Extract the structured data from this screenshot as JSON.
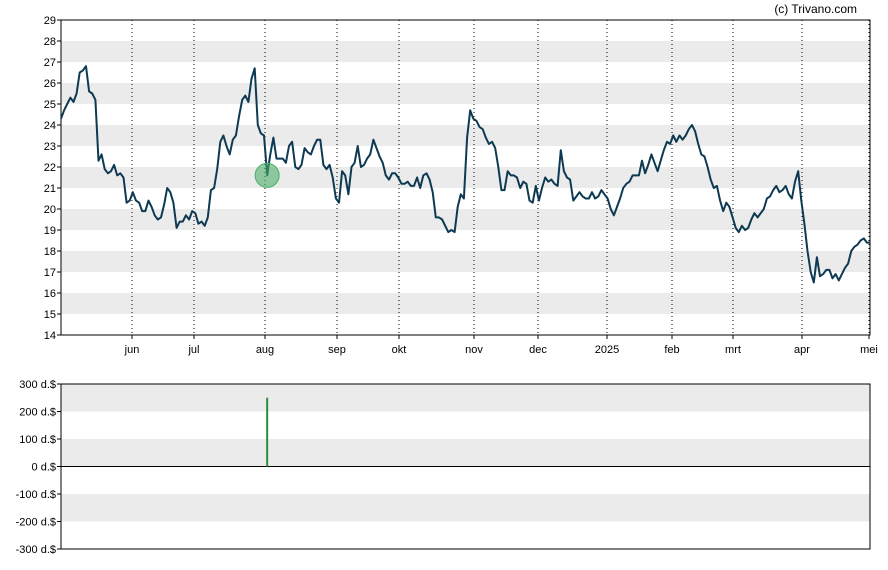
{
  "copyright": "(c) Trivano.com",
  "colors": {
    "price_line": "#0d3a52",
    "band": "#ebebeb",
    "grid": "#000000",
    "marker_fill": "#4caf6b",
    "volume_bar": "#2e8b3e"
  },
  "chart_data": [
    {
      "type": "line",
      "x_tick_labels": [
        "jun",
        "jul",
        "aug",
        "sep",
        "okt",
        "nov",
        "dec",
        "2025",
        "feb",
        "mrt",
        "apr",
        "mei"
      ],
      "y_tick_labels": [
        "29",
        "28",
        "27",
        "26",
        "25",
        "24",
        "23",
        "22",
        "21",
        "20",
        "19",
        "18",
        "17",
        "16",
        "15",
        "14"
      ],
      "ylim": [
        14,
        29
      ],
      "grid": "dotted vertical at month starts, alternating horizontal bands",
      "series": [
        {
          "values": [
            24.3,
            24.7,
            25.0,
            25.3,
            25.1,
            25.5,
            26.5,
            26.6,
            26.8,
            25.6,
            25.5,
            25.2,
            22.3,
            22.6,
            21.9,
            21.7,
            21.8,
            22.1,
            21.6,
            21.7,
            21.5,
            20.3,
            20.4,
            20.8,
            20.4,
            20.3,
            19.9,
            19.9,
            20.4,
            20.1,
            19.7,
            19.5,
            19.6,
            20.2,
            21.0,
            20.8,
            20.3,
            19.1,
            19.4,
            19.4,
            19.7,
            19.5,
            19.9,
            19.8,
            19.3,
            19.4,
            19.2,
            19.6,
            20.9,
            21.0,
            21.9,
            23.2,
            23.5,
            23.0,
            22.6,
            23.3,
            23.5,
            24.4,
            25.2,
            25.4,
            25.1,
            26.2,
            26.7,
            24.0,
            23.6,
            23.5,
            21.6,
            22.6,
            23.4,
            22.4,
            22.4,
            22.4,
            22.2,
            23.0,
            23.2,
            22.0,
            21.9,
            22.1,
            22.9,
            22.7,
            22.6,
            23.0,
            23.3,
            23.3,
            22.1,
            21.9,
            22.1,
            21.5,
            20.5,
            20.3,
            21.8,
            21.6,
            20.7,
            22.0,
            22.2,
            23.0,
            22.0,
            22.1,
            22.4,
            22.6,
            23.3,
            22.9,
            22.5,
            22.2,
            21.6,
            21.4,
            21.7,
            21.7,
            21.5,
            21.2,
            21.2,
            21.3,
            21.1,
            21.1,
            21.5,
            21.0,
            21.6,
            21.7,
            21.4,
            20.8,
            19.6,
            19.6,
            19.5,
            19.2,
            18.9,
            19.0,
            18.9,
            20.1,
            20.7,
            20.5,
            23.4,
            24.7,
            24.3,
            24.2,
            23.9,
            23.8,
            23.4,
            23.1,
            23.2,
            22.9,
            22.0,
            20.9,
            20.9,
            21.8,
            21.6,
            21.6,
            21.5,
            21.0,
            21.3,
            21.2,
            20.4,
            20.3,
            21.1,
            20.4,
            21.0,
            21.5,
            21.3,
            21.4,
            21.2,
            21.1,
            22.8,
            21.8,
            21.5,
            21.4,
            20.4,
            20.6,
            20.8,
            20.6,
            20.5,
            20.5,
            20.8,
            20.5,
            20.6,
            20.9,
            20.7,
            20.5,
            20.0,
            19.7,
            20.1,
            20.5,
            21.0,
            21.2,
            21.3,
            21.6,
            21.6,
            21.6,
            22.3,
            21.7,
            22.1,
            22.6,
            22.2,
            21.8,
            22.3,
            22.8,
            23.2,
            23.1,
            23.5,
            23.2,
            23.5,
            23.3,
            23.5,
            23.8,
            24.0,
            23.7,
            23.1,
            22.6,
            22.5,
            22.0,
            21.4,
            21.0,
            21.1,
            20.4,
            19.9,
            20.3,
            20.1,
            19.6,
            19.1,
            18.9,
            19.2,
            19.0,
            19.1,
            19.5,
            19.8,
            19.6,
            19.8,
            20.0,
            20.5,
            20.6,
            20.9,
            21.1,
            20.8,
            20.9,
            21.1,
            20.7,
            20.5,
            21.3,
            21.8,
            20.4,
            19.3,
            18.0,
            17.0,
            16.5,
            17.7,
            16.8,
            16.9,
            17.1,
            17.1,
            16.7,
            16.9,
            16.6,
            16.9,
            17.2,
            17.4,
            18.0,
            18.2,
            18.3,
            18.5,
            18.6,
            18.4,
            18.4
          ]
        }
      ],
      "markers": [
        {
          "type": "circle",
          "index": 66
        }
      ]
    },
    {
      "type": "bar",
      "y_tick_labels": [
        "300 d.$",
        "200 d.$",
        "100 d.$",
        "0 d.$",
        "-100 d.$",
        "-200 d.$",
        "-300 d.$"
      ],
      "ylim": [
        -300,
        300
      ],
      "bars": [
        {
          "index": 66,
          "value": 250
        }
      ]
    }
  ]
}
